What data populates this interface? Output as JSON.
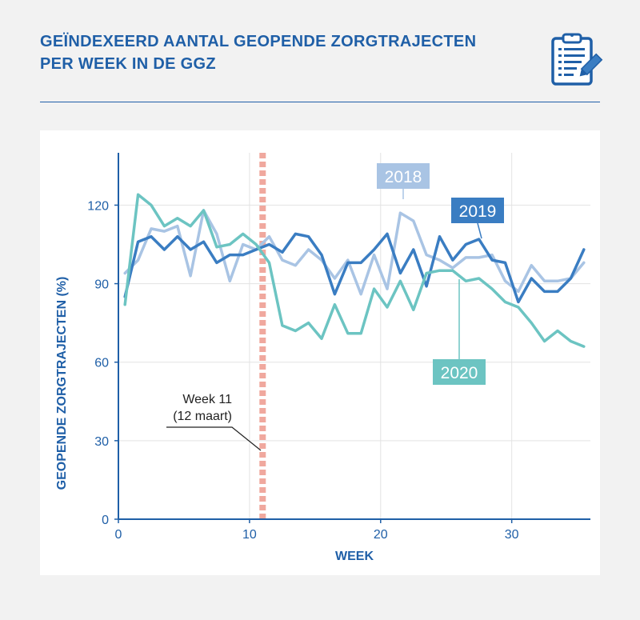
{
  "header": {
    "title_line1": "GEÏNDEXEERD AANTAL GEOPENDE ZORGTRAJECTEN",
    "title_line2": "PER WEEK IN DE GGZ",
    "icon": "clipboard-pencil-icon"
  },
  "colors": {
    "accent": "#1f5fa7",
    "series_2018": "#a9c4e4",
    "series_2019": "#3a7dc2",
    "series_2020": "#6cc4c2",
    "marker": "#f0a89e",
    "grid": "#e3e3e3"
  },
  "chart_data": {
    "type": "line",
    "xlabel": "WEEK",
    "ylabel": "GEOPENDE ZORGTRAJECTEN (%)",
    "xlim": [
      0,
      36
    ],
    "ylim": [
      0,
      140
    ],
    "xticks": [
      0,
      10,
      20,
      30
    ],
    "yticks": [
      0,
      30,
      60,
      90,
      120
    ],
    "grid": true,
    "x": [
      0.5,
      1.5,
      2.5,
      3.5,
      4.5,
      5.5,
      6.5,
      7.5,
      8.5,
      9.5,
      10.5,
      11.5,
      12.5,
      13.5,
      14.5,
      15.5,
      16.5,
      17.5,
      18.5,
      19.5,
      20.5,
      21.5,
      22.5,
      23.5,
      24.5,
      25.5,
      26.5,
      27.5,
      28.5,
      29.5,
      30.5,
      31.5,
      32.5,
      33.5,
      34.5,
      35.5
    ],
    "series": [
      {
        "name": "2018",
        "values": [
          94,
          99,
          111,
          110,
          112,
          93,
          118,
          109,
          91,
          105,
          103,
          108,
          99,
          97,
          103,
          99,
          92,
          99,
          86,
          101,
          88,
          117,
          114,
          101,
          99,
          96,
          100,
          100,
          101,
          91,
          87,
          97,
          91,
          91,
          92,
          98
        ]
      },
      {
        "name": "2019",
        "values": [
          85,
          106,
          108,
          103,
          108,
          103,
          106,
          98,
          101,
          101,
          103,
          105,
          102,
          109,
          108,
          101,
          86,
          98,
          98,
          103,
          109,
          94,
          103,
          89,
          108,
          99,
          105,
          107,
          99,
          98,
          83,
          92,
          87,
          87,
          92,
          103
        ]
      },
      {
        "name": "2020",
        "values": [
          82,
          124,
          120,
          112,
          115,
          112,
          118,
          104,
          105,
          109,
          105,
          98,
          74,
          72,
          75,
          69,
          82,
          71,
          71,
          88,
          81,
          91,
          80,
          94,
          95,
          95,
          91,
          92,
          88,
          83,
          81,
          75,
          68,
          72,
          68,
          66
        ]
      }
    ],
    "marker": {
      "x": 11,
      "label_line1": "Week 11",
      "label_line2": "(12 maart)"
    }
  }
}
